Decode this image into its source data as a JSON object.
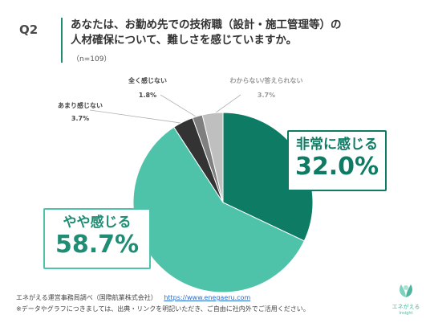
{
  "header": {
    "question_label": "Q2",
    "title_line1": "あなたは、お勤め先での技術職（設計・施工管理等）の",
    "title_line2": "人材確保について、難しさを感じていますか。",
    "n_label": "（n=109）"
  },
  "chart_data": {
    "type": "pie",
    "start": "12 o'clock, clockwise",
    "labels": [
      "非常に感じる",
      "やや感じる",
      "あまり感じない",
      "全く感じない",
      "わからない/答えられない"
    ],
    "values": [
      32.0,
      58.7,
      3.7,
      1.8,
      3.7
    ],
    "value_labels": [
      "32.0%",
      "58.7%",
      "3.7%",
      "1.8%",
      "3.7%"
    ],
    "colors": [
      "#0e7c65",
      "#4fc3aa",
      "#333333",
      "#7f7f7f",
      "#bfbfbf"
    ]
  },
  "footer": {
    "source": "エネがえる運営事務局調べ（国際航業株式会社）",
    "url": "https://www.enegaeru.com",
    "note": "※データやグラフにつきましては、出典・リンクを明記いただき、ご自由に社内外でご活用ください。"
  },
  "logo": {
    "name": "エネがえる",
    "sub": "Insight"
  }
}
